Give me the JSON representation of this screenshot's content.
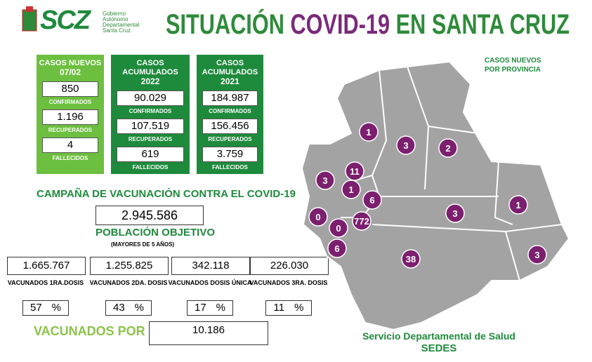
{
  "header": {
    "logo": "SCZ",
    "org": [
      "Gobierno",
      "Autónomo",
      "Departamental",
      "Santa Cruz"
    ],
    "title": [
      "SITUACIÓN",
      "COVID-19",
      "EN SANTA CRUZ"
    ]
  },
  "cases": [
    {
      "title": [
        "CASOS NUEVOS",
        "07/02"
      ],
      "rows": [
        {
          "value": "850",
          "label": "CONFIRMADOS"
        },
        {
          "value": "1.196",
          "label": "RECUPERADOS"
        },
        {
          "value": "4",
          "label": "FALLECIDOS"
        }
      ]
    },
    {
      "title": [
        "CASOS ACUMULADOS",
        "2022"
      ],
      "rows": [
        {
          "value": "90.029",
          "label": "CONFIRMADOS"
        },
        {
          "value": "107.519",
          "label": "RECUPERADOS"
        },
        {
          "value": "619",
          "label": "FALLECIDOS"
        }
      ]
    },
    {
      "title": [
        "CASOS ACUMULADOS",
        "2021"
      ],
      "rows": [
        {
          "value": "184.987",
          "label": "CONFIRMADOS"
        },
        {
          "value": "156.456",
          "label": "RECUPERADOS"
        },
        {
          "value": "3.759",
          "label": "FALLECIDOS"
        }
      ]
    }
  ],
  "vaccination": {
    "title": "CAMPAÑA DE VACUNACIÓN CONTRA EL COVID-19",
    "target": "2.945.586",
    "target_label": "POBLACIÓN OBJETIVO",
    "target_note": "(MAYORES DE 5 AÑOS)",
    "percent_sign": "%",
    "doses": [
      {
        "value": "1.665.767",
        "label": "VACUNADOS 1RA.DOSIS",
        "percent": "57"
      },
      {
        "value": "1.255.825",
        "label": "VACUNADOS 2DA. DOSIS",
        "percent": "43"
      },
      {
        "value": "342.118",
        "label": "VACUNADOS DOSIS ÚNICA",
        "percent": "17"
      },
      {
        "value": "226.030",
        "label": "VACUNADOS 3RA. DOSIS",
        "percent": "11"
      }
    ],
    "daily_label": "VACUNADOS POR DÍA",
    "daily": "10.186"
  },
  "map": {
    "title": [
      "CASOS NUEVOS",
      "POR PROVINCIA"
    ],
    "provinces": [
      "1",
      "3",
      "2",
      "3",
      "11",
      "1",
      "6",
      "0",
      "772",
      "0",
      "6",
      "3",
      "1",
      "38",
      "3"
    ]
  },
  "footer": [
    "Servicio Departamental de Salud",
    "SEDES"
  ]
}
